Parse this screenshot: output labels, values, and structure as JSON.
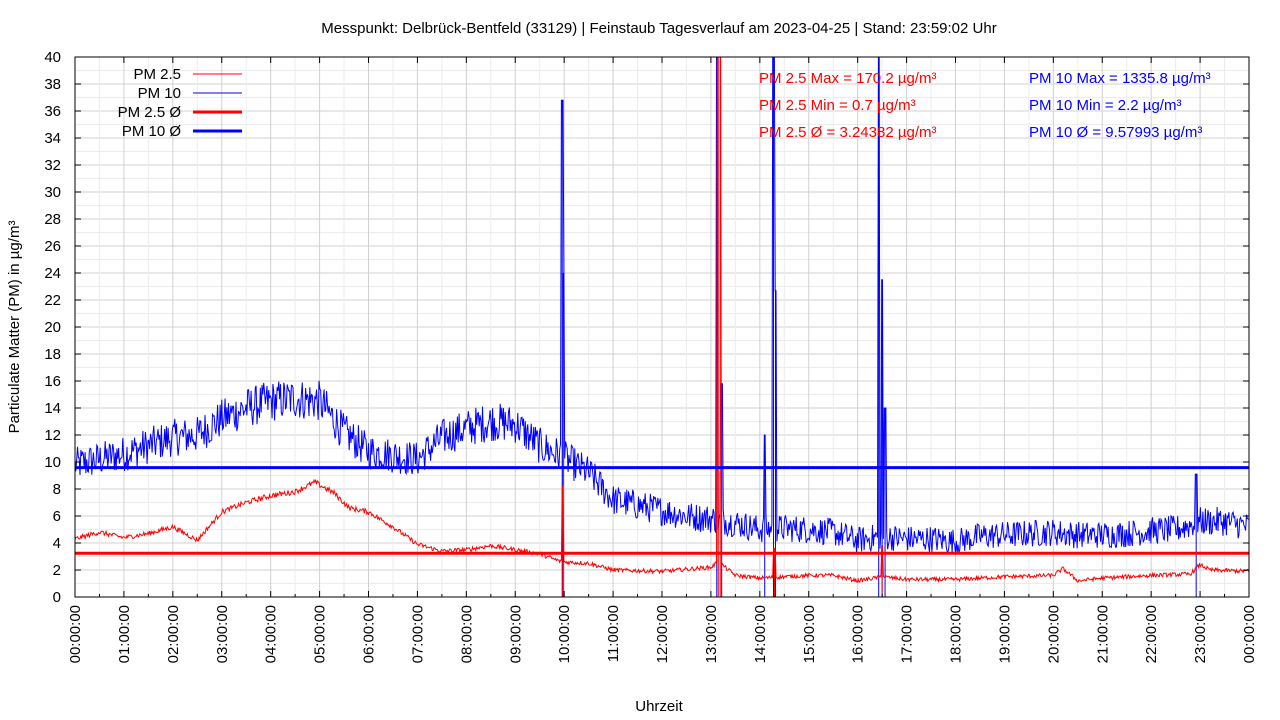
{
  "chart_data": {
    "type": "line",
    "title": "Messpunkt: Delbrück-Bentfeld (33129) | Feinstaub Tagesverlauf am 2023-04-25 | Stand: 23:59:02 Uhr",
    "xlabel": "Uhrzeit",
    "ylabel": "Particulate Matter (PM) in µg/m³",
    "ylim": [
      0,
      40
    ],
    "xlim_hours": [
      0,
      24
    ],
    "grid": true,
    "legend_position": "top-left",
    "y_ticks": [
      "0",
      "2",
      "4",
      "6",
      "8",
      "10",
      "12",
      "14",
      "16",
      "18",
      "20",
      "22",
      "24",
      "26",
      "28",
      "30",
      "32",
      "34",
      "36",
      "38",
      "40"
    ],
    "x_ticks": [
      "00:00:00",
      "01:00:00",
      "02:00:00",
      "03:00:00",
      "04:00:00",
      "05:00:00",
      "06:00:00",
      "07:00:00",
      "08:00:00",
      "09:00:00",
      "10:00:00",
      "11:00:00",
      "12:00:00",
      "13:00:00",
      "14:00:00",
      "15:00:00",
      "16:00:00",
      "17:00:00",
      "18:00:00",
      "19:00:00",
      "20:00:00",
      "21:00:00",
      "22:00:00",
      "23:00:00",
      "00:00:00"
    ],
    "legend": [
      "PM 2.5",
      "PM 10",
      "PM 2.5 Ø",
      "PM 10 Ø"
    ],
    "colors": {
      "pm25": "#ff0000",
      "pm10": "#0000ff"
    },
    "series": [
      {
        "name": "PM 2.5",
        "color": "#ff0000",
        "x_hours": [
          0,
          0.5,
          1,
          1.5,
          2,
          2.5,
          3,
          3.5,
          4,
          4.5,
          4.9,
          5.3,
          5.6,
          6,
          6.5,
          7,
          7.5,
          8,
          8.5,
          9,
          9.5,
          9.95,
          10.5,
          11,
          12,
          13,
          13.15,
          13.5,
          14,
          14.5,
          15,
          15.5,
          16,
          16.5,
          17,
          18,
          19,
          20,
          20.2,
          20.5,
          21,
          22,
          22.8,
          23,
          23.2,
          24
        ],
        "values": [
          4.3,
          4.8,
          4.4,
          4.7,
          5.2,
          4.2,
          6.3,
          7.0,
          7.5,
          7.8,
          8.5,
          7.7,
          6.6,
          6.3,
          5.2,
          3.9,
          3.4,
          3.5,
          3.8,
          3.5,
          3.2,
          2.6,
          2.5,
          2.0,
          1.9,
          2.2,
          2.6,
          1.6,
          1.4,
          1.5,
          1.6,
          1.6,
          1.2,
          1.5,
          1.3,
          1.3,
          1.5,
          1.6,
          2.1,
          1.2,
          1.4,
          1.6,
          1.7,
          2.4,
          2.0,
          1.9
        ]
      },
      {
        "name": "PM 10",
        "color": "#0000ff",
        "x_hours": [
          0,
          0.5,
          1,
          1.5,
          2,
          2.5,
          3,
          3.5,
          4,
          4.5,
          5,
          5.5,
          6,
          6.5,
          7,
          7.5,
          8,
          8.5,
          9,
          9.5,
          9.95,
          10.5,
          11,
          11.5,
          12,
          12.5,
          13,
          13.5,
          14,
          14.5,
          15,
          15.5,
          16,
          16.5,
          17,
          17.5,
          18,
          18.5,
          19,
          19.5,
          20,
          20.5,
          21,
          21.5,
          22,
          22.5,
          23,
          23.5,
          24
        ],
        "values": [
          9.8,
          10.2,
          10.6,
          11.2,
          11.8,
          12.0,
          13.2,
          14.0,
          14.5,
          14.7,
          14.5,
          12.2,
          10.8,
          10.5,
          10.2,
          11.8,
          12.5,
          13.0,
          12.8,
          11.2,
          10.4,
          9.2,
          7.2,
          6.8,
          6.4,
          6.0,
          5.8,
          5.5,
          5.0,
          5.1,
          5.0,
          4.8,
          4.2,
          4.5,
          4.3,
          4.3,
          4.1,
          4.5,
          4.6,
          4.7,
          4.8,
          4.6,
          4.6,
          4.7,
          4.9,
          5.0,
          5.6,
          5.6,
          5.2
        ]
      },
      {
        "name": "PM 2.5 Ø",
        "color": "#ff0000",
        "value": 3.24382
      },
      {
        "name": "PM 10 Ø",
        "color": "#0000ff",
        "value": 9.57993
      }
    ],
    "spikes": {
      "pm25": [
        {
          "x_hours": 9.97,
          "value": 8.2
        },
        {
          "x_hours": 13.15,
          "value": 170.2
        },
        {
          "x_hours": 13.19,
          "value": 170.2
        },
        {
          "x_hours": 14.3,
          "value": 3.6
        },
        {
          "x_hours": 16.5,
          "value": 3.8
        }
      ],
      "pm10": [
        {
          "x_hours": 9.96,
          "value": 36.8
        },
        {
          "x_hours": 9.98,
          "value": 24.0
        },
        {
          "x_hours": 13.12,
          "value": 1335.8
        },
        {
          "x_hours": 13.22,
          "value": 15.8
        },
        {
          "x_hours": 14.1,
          "value": 12.0
        },
        {
          "x_hours": 14.28,
          "value": 1335.8
        },
        {
          "x_hours": 14.32,
          "value": 22.7
        },
        {
          "x_hours": 16.43,
          "value": 1335.8
        },
        {
          "x_hours": 16.5,
          "value": 23.5
        },
        {
          "x_hours": 16.56,
          "value": 14.0
        },
        {
          "x_hours": 22.92,
          "value": 9.1
        }
      ]
    },
    "annotations": {
      "pm25_max": "PM 2.5 Max = 170.2 µg/m³",
      "pm25_min": "PM 2.5 Min = 0.7 µg/m³",
      "pm25_avg": "PM 2.5 Ø = 3.24382 µg/m³",
      "pm10_max": "PM 10 Max = 1335.8 µg/m³",
      "pm10_min": "PM 10 Min = 2.2 µg/m³",
      "pm10_avg": "PM 10 Ø = 9.57993 µg/m³"
    }
  }
}
